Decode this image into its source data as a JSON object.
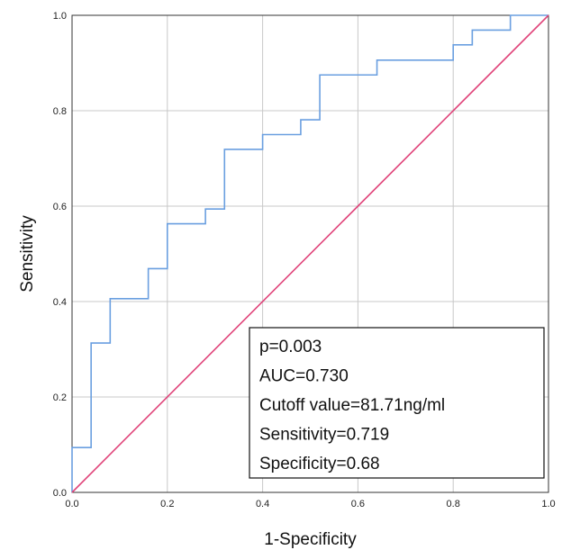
{
  "chart_data": {
    "type": "line",
    "title": "",
    "xlabel": "1-Specificity",
    "ylabel": "Sensitivity",
    "xlim": [
      0.0,
      1.0
    ],
    "ylim": [
      0.0,
      1.0
    ],
    "grid": true,
    "x_ticks": [
      "0.0",
      "0.2",
      "0.4",
      "0.6",
      "0.8",
      "1.0"
    ],
    "y_ticks": [
      "0.0",
      "0.2",
      "0.4",
      "0.6",
      "0.8",
      "1.0"
    ],
    "series": [
      {
        "color": "#6a9fe0",
        "step": true,
        "x": [
          0.0,
          0.0,
          0.04,
          0.04,
          0.08,
          0.08,
          0.16,
          0.16,
          0.2,
          0.2,
          0.28,
          0.28,
          0.32,
          0.32,
          0.4,
          0.4,
          0.48,
          0.48,
          0.52,
          0.52,
          0.64,
          0.64,
          0.8,
          0.8,
          0.84,
          0.84,
          0.92,
          0.92,
          1.0
        ],
        "y": [
          0.0,
          0.094,
          0.094,
          0.313,
          0.313,
          0.406,
          0.406,
          0.469,
          0.469,
          0.563,
          0.563,
          0.594,
          0.594,
          0.719,
          0.719,
          0.75,
          0.75,
          0.781,
          0.781,
          0.875,
          0.875,
          0.906,
          0.906,
          0.938,
          0.938,
          0.969,
          0.969,
          1.0,
          1.0
        ]
      },
      {
        "color": "#e0447a",
        "x": [
          0.0,
          1.0
        ],
        "y": [
          0.0,
          1.0
        ]
      }
    ],
    "annotation": {
      "lines": [
        "p=0.003",
        "AUC=0.730",
        "Cutoff value=81.71ng/ml",
        "Sensitivity=0.719",
        "Specificity=0.68"
      ],
      "placement": "bottom-right"
    }
  }
}
